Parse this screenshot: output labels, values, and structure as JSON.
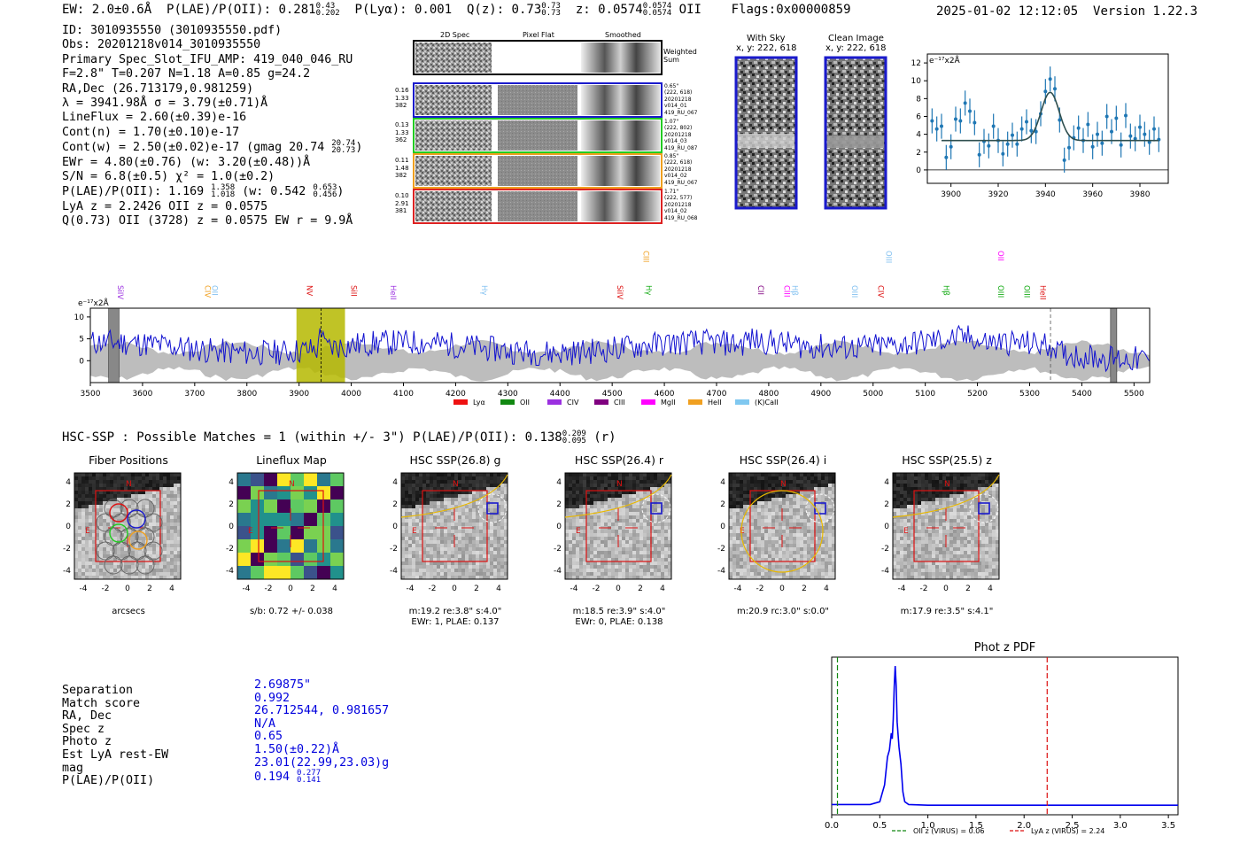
{
  "header": {
    "ew": "EW: 2.0±0.6Å",
    "plae_label": "P(LAE)/P(OII): 0.281",
    "plae_hi": "0.43",
    "plae_lo": "0.202",
    "plya": "P(Lyα): 0.001",
    "qz_label": "Q(z): 0.73",
    "qz_hi": "0.73",
    "qz_lo": "0.73",
    "z_label": "z: 0.0574",
    "z_hi": "0.0574",
    "z_lo": "0.0574",
    "z_line": "OII",
    "flags": "Flags:0x00000859",
    "datetime": "2025-01-02 12:12:05",
    "version": "Version 1.22.3"
  },
  "info": {
    "id": "ID: 3010935550 (3010935550.pdf)",
    "obs": "Obs: 20201218v014_3010935550",
    "slot": "Primary Spec_Slot_IFU_AMP: 419_040_046_RU",
    "fwhm": "F=2.8\"  T=0.207  N=1.18  A=0.85  g=24.2",
    "radec": "RA,Dec (26.713179,0.981259)",
    "lambda": "λ = 3941.98Å  σ = 3.79(±0.71)Å",
    "lineflux": "LineFlux = 2.60(±0.39)e-16",
    "contn": "Cont(n) = 1.70(±0.10)e-17",
    "contw_label": "Cont(w) = 2.50(±0.02)e-17 (gmag 20.74",
    "contw_hi": "20.74",
    "contw_lo": "20.73",
    "contw_end": ")",
    "ewr": "EWr = 4.80(±0.76) (w: 3.20(±0.48))Å",
    "sn": "S/N = 6.8(±0.5)  χ² = 1.0(±0.2)",
    "plae_label": "P(LAE)/P(OII): 1.169",
    "plae_hi": "1.358",
    "plae_lo": "1.018",
    "plae_w": "(w: 0.542",
    "plae_w_hi": "0.653",
    "plae_w_lo": "0.456",
    "plae_end": ")",
    "lya_z": "LyA z = 2.2426  OII z = 0.0575",
    "q_line": "Q(0.73) OII (3728) z = 0.0575  EW r = 9.9Å"
  },
  "cutouts": {
    "col_titles": [
      "2D Spec",
      "Pixel Flat",
      "Smoothed"
    ],
    "weighted_label": "Weighted Sum",
    "rows": [
      {
        "left": [
          "0.16",
          "1.33",
          "382"
        ],
        "right": [
          "0.65\"",
          "(222, 618)",
          "20201218",
          "v014_01",
          "419_RU_067"
        ],
        "color": "#1a1acc"
      },
      {
        "left": [
          "0.13",
          "1.33",
          "362"
        ],
        "right": [
          "1.07\"",
          "(222, 802)",
          "20201218",
          "v014_03",
          "419_RU_087"
        ],
        "color": "#22cc22"
      },
      {
        "left": [
          "0.11",
          "1.48",
          "382"
        ],
        "right": [
          "0.85\"",
          "(222, 618)",
          "20201218",
          "v014_02",
          "419_RU_067"
        ],
        "color": "#f0a020"
      },
      {
        "left": [
          "0.10",
          "2.91",
          "381"
        ],
        "right": [
          "1.71\"",
          "(222, 577)",
          "20201218",
          "v014_02",
          "419_RU_068"
        ],
        "color": "#dd2222"
      }
    ]
  },
  "sky": {
    "with_sky_title": "With Sky",
    "clean_title": "Clean Image",
    "coord": "x, y: 222, 618"
  },
  "zoom_chart": {
    "type": "line",
    "ylabel": "e⁻¹⁷x2Å",
    "xlim": [
      3890,
      3992
    ],
    "ylim": [
      -1.5,
      13
    ],
    "xticks": [
      3900,
      3920,
      3940,
      3960,
      3980
    ],
    "yticks": [
      0,
      2,
      4,
      6,
      8,
      10,
      12
    ],
    "points_x": [
      3892,
      3894,
      3896,
      3898,
      3900,
      3902,
      3904,
      3906,
      3908,
      3910,
      3912,
      3914,
      3916,
      3918,
      3920,
      3922,
      3924,
      3926,
      3928,
      3930,
      3932,
      3934,
      3936,
      3938,
      3940,
      3942,
      3944,
      3946,
      3948,
      3950,
      3952,
      3954,
      3956,
      3958,
      3960,
      3962,
      3964,
      3966,
      3968,
      3970,
      3972,
      3974,
      3976,
      3978,
      3980,
      3982,
      3984,
      3986,
      3988
    ],
    "points_y": [
      5.5,
      4.6,
      4.9,
      1.4,
      2.6,
      5.7,
      5.5,
      7.5,
      6.6,
      5.3,
      1.7,
      3.2,
      2.7,
      4.9,
      3.3,
      1.8,
      2.9,
      3.9,
      2.9,
      4.6,
      5.4,
      4.4,
      4.3,
      6.3,
      8.8,
      10.2,
      9.1,
      5.6,
      1.1,
      2.5,
      3.6,
      4.7,
      3.3,
      5.1,
      2.6,
      4.0,
      3.0,
      6.0,
      4.3,
      5.8,
      2.8,
      6.1,
      3.8,
      3.5,
      4.8,
      4.0,
      3.1,
      4.6,
      3.4
    ],
    "fit_center": 3942,
    "fit_sigma": 3.8,
    "fit_peak": 5.4,
    "fit_base": 3.3
  },
  "main_spectrum": {
    "type": "line",
    "ylabel": "e⁻¹⁷x2Å",
    "xlim": [
      3500,
      5530
    ],
    "ylim": [
      -5,
      12
    ],
    "xticks": [
      3500,
      3600,
      3700,
      3800,
      3900,
      4000,
      4100,
      4200,
      4300,
      4400,
      4500,
      4600,
      4700,
      4800,
      4900,
      5000,
      5100,
      5200,
      5300,
      5400,
      5500
    ],
    "yticks": [
      0,
      5,
      10
    ],
    "highlight_range": [
      3895,
      3988
    ],
    "line_marker": 3942,
    "dashed_marker": 5340,
    "hatched_ranges": [
      [
        3535,
        3555
      ],
      [
        5455,
        5467
      ]
    ],
    "lines": [
      {
        "name": "SiIV",
        "wave": 3553,
        "color": "#9b30e0",
        "row": 0
      },
      {
        "name": "CIV",
        "wave": 3720,
        "color": "#f0a020",
        "row": 0
      },
      {
        "name": "OII",
        "wave": 3733,
        "color": "#80c0f0",
        "row": 0
      },
      {
        "name": "NV",
        "wave": 3915,
        "color": "#dd1111",
        "row": 0
      },
      {
        "name": "SiII",
        "wave": 4000,
        "color": "#dd1111",
        "row": 0
      },
      {
        "name": "HeII",
        "wave": 4075,
        "color": "#9b30e0",
        "row": 0
      },
      {
        "name": "Hγ",
        "wave": 4250,
        "color": "#80c0f0",
        "row": 0
      },
      {
        "name": "SiIV",
        "wave": 4510,
        "color": "#dd1111",
        "row": 0
      },
      {
        "name": "CIII",
        "wave": 4560,
        "color": "#f0a020",
        "row": 1
      },
      {
        "name": "Hγ",
        "wave": 4565,
        "color": "#11aa11",
        "row": 0
      },
      {
        "name": "CII",
        "wave": 4780,
        "color": "#800080",
        "row": 0
      },
      {
        "name": "CIII",
        "wave": 4830,
        "color": "#ff00ff",
        "row": 0
      },
      {
        "name": "Hβ",
        "wave": 4845,
        "color": "#80c0f0",
        "row": 0
      },
      {
        "name": "OIII",
        "wave": 4960,
        "color": "#80c0f0",
        "row": 0
      },
      {
        "name": "OIII",
        "wave": 5025,
        "color": "#80c0f0",
        "row": 1
      },
      {
        "name": "CIV",
        "wave": 5010,
        "color": "#dd1111",
        "row": 0
      },
      {
        "name": "Hβ",
        "wave": 5135,
        "color": "#11aa11",
        "row": 0
      },
      {
        "name": "OIII",
        "wave": 5240,
        "color": "#11aa11",
        "row": 0
      },
      {
        "name": "OII",
        "wave": 5240,
        "color": "#ff00ff",
        "row": 1
      },
      {
        "name": "OIII",
        "wave": 5290,
        "color": "#11aa11",
        "row": 0
      },
      {
        "name": "HeII",
        "wave": 5320,
        "color": "#dd1111",
        "row": 0
      }
    ],
    "legend": [
      {
        "name": "Lyα",
        "color": "#ee1111"
      },
      {
        "name": "OII",
        "color": "#118811"
      },
      {
        "name": "CIV",
        "color": "#9b30e0"
      },
      {
        "name": "CIII",
        "color": "#800080"
      },
      {
        "name": "MgII",
        "color": "#ff00ff"
      },
      {
        "name": "HeII",
        "color": "#f0a020"
      },
      {
        "name": "(K)CaII",
        "color": "#80c8f0"
      }
    ]
  },
  "hsc": {
    "title": "HSC-SSP : Possible Matches = 1 (within +/- 3\")  P(LAE)/P(OII): 0.138",
    "frac_hi": "0.209",
    "frac_lo": "0.095",
    "filter": "(r)",
    "panels": [
      {
        "title": "Fiber Positions",
        "cap1": "arcsecs",
        "cap2": ""
      },
      {
        "title": "Lineflux Map",
        "cap1": "s/b: 0.72 +/- 0.038",
        "cap2": ""
      },
      {
        "title": "HSC SSP(26.8) g",
        "cap1": "m:19.2  re:3.8\"  s:4.0\"",
        "cap2": "EWr: 1, PLAE: 0.137"
      },
      {
        "title": "HSC SSP(26.4) r",
        "cap1": "m:18.5  re:3.9\"  s:4.0\"",
        "cap2": "EWr: 0, PLAE: 0.138"
      },
      {
        "title": "HSC SSP(26.4) i",
        "cap1": "m:20.9 rc:3.0\"  s:0.0\"",
        "cap2": ""
      },
      {
        "title": "HSC SSP(25.5) z",
        "cap1": "m:17.9  re:3.5\"  s:4.1\"",
        "cap2": ""
      }
    ],
    "axis_ticks": [
      "-4",
      "-2",
      "0",
      "2",
      "4"
    ],
    "n_label": "N",
    "e_label": "E"
  },
  "match": {
    "labels": [
      "Separation",
      "Match score",
      "RA, Dec",
      "Spec z",
      "Photo z",
      "Est LyA rest-EW",
      "mag",
      "P(LAE)/P(OII)"
    ],
    "values": [
      "2.69875\"",
      "0.992",
      "26.712544, 0.981657",
      "N/A",
      "0.65",
      "1.50(±0.22)Å",
      "23.01(22.99,23.03)g",
      "0.194"
    ],
    "plae_hi": "0.277",
    "plae_lo": "0.141"
  },
  "photz_chart": {
    "type": "line",
    "title": "Phot z PDF",
    "xlim": [
      0,
      3.6
    ],
    "xticks": [
      0.0,
      0.5,
      1.0,
      1.5,
      2.0,
      2.5,
      3.0,
      3.5
    ],
    "xtick_labels": [
      "0.0",
      "0.5",
      "1.0",
      "1.5",
      "2.0",
      "2.5",
      "3.0",
      "3.5"
    ],
    "oii_z": 0.06,
    "lya_z": 2.24,
    "legend_oii": "OII z (VIRUS) = 0.06",
    "legend_lya": "LyA z (VIRUS) = 2.24",
    "pdf_x": [
      0.0,
      0.4,
      0.5,
      0.55,
      0.58,
      0.6,
      0.62,
      0.63,
      0.64,
      0.65,
      0.66,
      0.67,
      0.68,
      0.7,
      0.72,
      0.74,
      0.76,
      0.8,
      1.0,
      3.6
    ],
    "pdf_y": [
      0.01,
      0.01,
      0.03,
      0.15,
      0.35,
      0.4,
      0.52,
      0.48,
      0.62,
      0.85,
      1.0,
      0.86,
      0.6,
      0.42,
      0.3,
      0.1,
      0.03,
      0.01,
      0.005,
      0.005
    ]
  }
}
